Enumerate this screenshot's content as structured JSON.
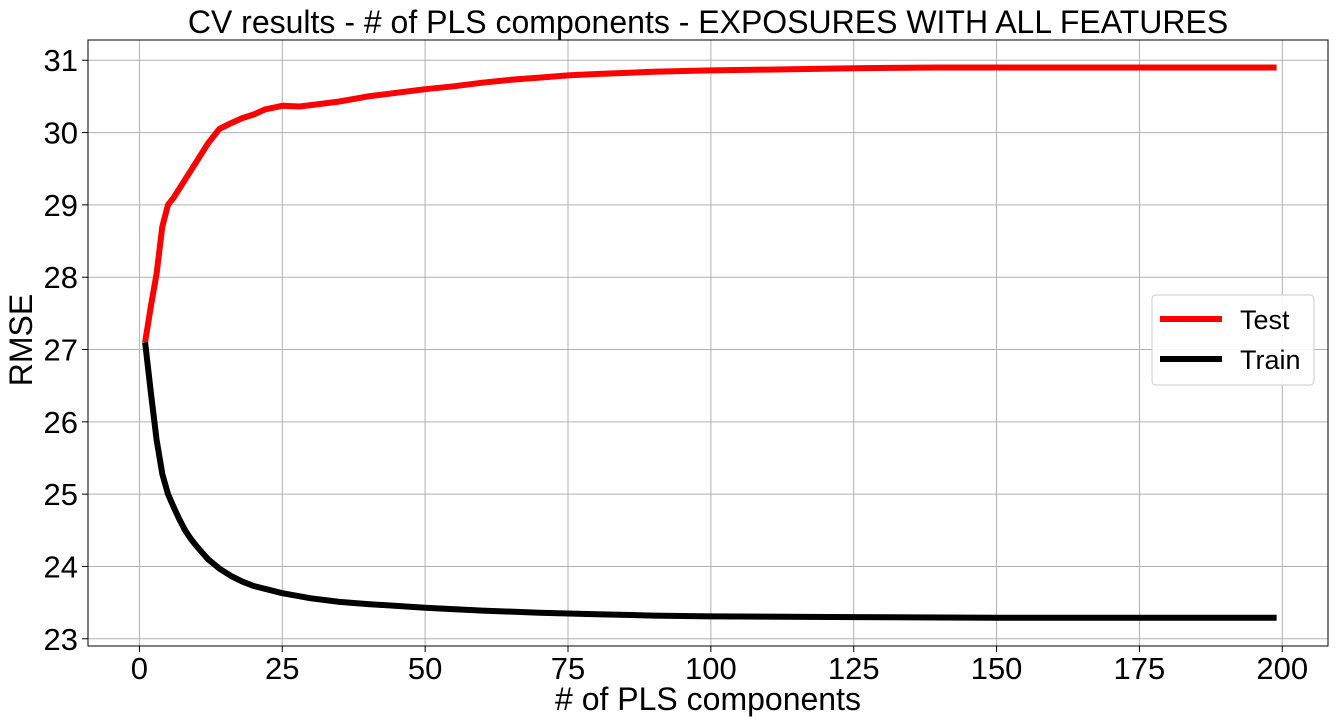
{
  "chart_data": {
    "type": "line",
    "title": "CV results - # of PLS components - EXPOSURES WITH ALL FEATURES",
    "xlabel": "# of PLS components",
    "ylabel": "RMSE",
    "xlim": [
      -9,
      208
    ],
    "ylim": [
      22.9,
      31.28
    ],
    "xticks": [
      0,
      25,
      50,
      75,
      100,
      125,
      150,
      175,
      200
    ],
    "yticks": [
      23,
      24,
      25,
      26,
      27,
      28,
      29,
      30,
      31
    ],
    "grid": true,
    "legend_position": "center-right",
    "series": [
      {
        "name": "Test",
        "color": "#ff0000",
        "x": [
          1,
          2,
          3,
          4,
          5,
          6,
          8,
          10,
          12,
          14,
          16,
          18,
          20,
          22,
          25,
          28,
          30,
          35,
          40,
          45,
          50,
          55,
          60,
          65,
          70,
          75,
          80,
          90,
          100,
          110,
          125,
          140,
          150,
          160,
          175,
          185,
          199
        ],
        "y": [
          27.1,
          27.6,
          28.05,
          28.7,
          29.0,
          29.1,
          29.35,
          29.6,
          29.85,
          30.05,
          30.13,
          30.2,
          30.25,
          30.32,
          30.37,
          30.36,
          30.38,
          30.43,
          30.5,
          30.55,
          30.6,
          30.64,
          30.69,
          30.73,
          30.76,
          30.79,
          30.81,
          30.84,
          30.86,
          30.87,
          30.89,
          30.9,
          30.9,
          30.9,
          30.9,
          30.9,
          30.9
        ]
      },
      {
        "name": "Train",
        "color": "#000000",
        "x": [
          1,
          2,
          3,
          4,
          5,
          6,
          7,
          8,
          9,
          10,
          12,
          14,
          16,
          18,
          20,
          25,
          30,
          35,
          40,
          50,
          60,
          70,
          80,
          90,
          100,
          125,
          150,
          175,
          199
        ],
        "y": [
          27.1,
          26.4,
          25.75,
          25.28,
          25.0,
          24.82,
          24.65,
          24.5,
          24.38,
          24.28,
          24.1,
          23.97,
          23.87,
          23.79,
          23.73,
          23.63,
          23.56,
          23.51,
          23.48,
          23.43,
          23.39,
          23.36,
          23.34,
          23.32,
          23.31,
          23.3,
          23.29,
          23.29,
          23.29
        ]
      }
    ]
  }
}
